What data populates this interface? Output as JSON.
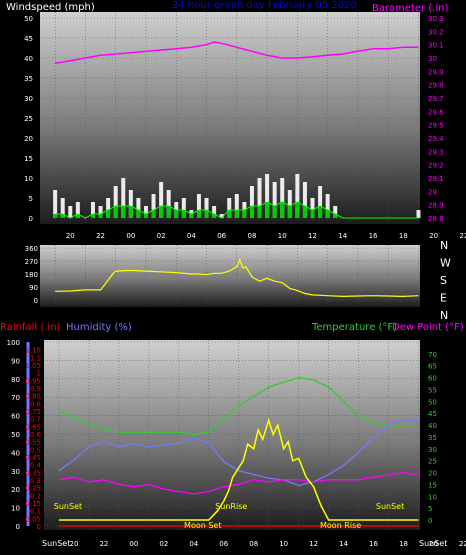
{
  "header": {
    "windspeed_label": "Windspeed (mph)",
    "center_title": "24 hour graph day   February 05 2020",
    "barometer_label": "Barometer (.in)"
  },
  "x_ticks": [
    "20",
    "22",
    "00",
    "02",
    "04",
    "06",
    "08",
    "10",
    "12",
    "14",
    "16",
    "18",
    "20",
    "22",
    "00"
  ],
  "direction_letters": [
    "N",
    "W",
    "S",
    "E",
    "N"
  ],
  "lower_labels": {
    "rainfall": "Rainfall (.in)",
    "humidity": "Humidity (%)",
    "temperature": "Temperature (°F)",
    "dewpoint": "Dew Point (°F)",
    "x_first": "SunSet",
    "x_last": "SunSet"
  },
  "annotations": [
    {
      "text": "SunSet",
      "x": 0.6
    },
    {
      "text": "SunRise",
      "x": 11.5
    },
    {
      "text": "SunSet",
      "x": 22.1
    },
    {
      "text": "Moon Set",
      "x": 9.6
    },
    {
      "text": "Moon Rise",
      "x": 18.8
    }
  ],
  "colors": {
    "windspeed_text": "#ffffff",
    "barometer": "#ff00ff",
    "title": "#0000ff",
    "gust": "#ffffff",
    "wind_avg": "#00cc00",
    "wind_line": "#00ff00",
    "direction": "#ffff00",
    "rain": "#ff0000",
    "humidity": "#7777ff",
    "temperature": "#33cc33",
    "dewpoint": "#ff00ff",
    "solar": "#ffff00",
    "annotation": "#ffff00"
  },
  "chart_data": [
    {
      "type": "line",
      "title": "Windspeed (mph) / Barometer (.in)",
      "xlabel": "",
      "ylabel": "Windspeed (mph)",
      "y2label": "Barometer (.in)",
      "xlim": [
        0,
        24
      ],
      "ylim": [
        0,
        50
      ],
      "y2lim": [
        28.8,
        30.3
      ],
      "y_ticks": [
        0,
        5,
        10,
        15,
        20,
        25,
        30,
        35,
        40,
        45,
        50
      ],
      "y2_ticks": [
        "28.8",
        "28.9",
        "29",
        "29.1",
        "29.2",
        "29.3",
        "29.4",
        "29.5",
        "29.6",
        "29.7",
        "29.8",
        "29.9",
        "30",
        "30.1",
        "30.2",
        "30.3"
      ],
      "grid": true,
      "series": [
        {
          "name": "Barometer",
          "axis": "y2",
          "x": [
            0,
            1,
            2,
            3,
            4,
            5,
            6,
            7,
            8,
            9,
            10,
            10.5,
            11,
            12,
            13,
            14,
            15,
            16,
            17,
            18,
            19,
            20,
            21,
            22,
            23,
            24
          ],
          "values": [
            29.96,
            29.98,
            30.0,
            30.02,
            30.03,
            30.04,
            30.05,
            30.06,
            30.07,
            30.08,
            30.1,
            30.12,
            30.11,
            30.08,
            30.05,
            30.02,
            30.0,
            30.0,
            30.01,
            30.02,
            30.03,
            30.05,
            30.07,
            30.07,
            30.08,
            30.08
          ]
        },
        {
          "name": "Gust",
          "axis": "y",
          "x": [
            0,
            0.5,
            1,
            1.5,
            2,
            2.5,
            3,
            3.5,
            4,
            4.5,
            5,
            5.5,
            6,
            6.5,
            7,
            7.5,
            8,
            8.5,
            9,
            9.5,
            10,
            10.5,
            11,
            11.5,
            12,
            12.5,
            13,
            13.5,
            14,
            14.5,
            15,
            15.5,
            16,
            16.5,
            17,
            17.5,
            18,
            18.5,
            19,
            20,
            21,
            22,
            23,
            24
          ],
          "values": [
            7,
            5,
            3,
            4,
            0,
            4,
            3,
            5,
            8,
            10,
            7,
            5,
            3,
            6,
            9,
            7,
            4,
            5,
            2,
            6,
            5,
            3,
            1,
            5,
            6,
            4,
            8,
            10,
            11,
            9,
            10,
            7,
            11,
            9,
            5,
            8,
            6,
            3,
            0,
            0,
            0,
            0,
            0,
            2
          ]
        },
        {
          "name": "Average",
          "axis": "y",
          "x": [
            0,
            0.5,
            1,
            1.5,
            2,
            2.5,
            3,
            3.5,
            4,
            4.5,
            5,
            5.5,
            6,
            6.5,
            7,
            7.5,
            8,
            8.5,
            9,
            9.5,
            10,
            10.5,
            11,
            11.5,
            12,
            12.5,
            13,
            13.5,
            14,
            14.5,
            15,
            15.5,
            16,
            16.5,
            17,
            17.5,
            18,
            18.5,
            19,
            24
          ],
          "values": [
            1,
            1,
            0,
            1,
            0,
            1,
            1,
            2,
            3,
            3,
            3,
            2,
            1,
            2,
            3,
            3,
            2,
            2,
            1,
            2,
            2,
            1,
            0,
            2,
            2,
            2,
            3,
            3,
            4,
            3,
            4,
            3,
            4,
            3,
            2,
            3,
            2,
            1,
            0,
            0
          ]
        }
      ]
    },
    {
      "type": "line",
      "title": "Wind Direction",
      "xlim": [
        0,
        24
      ],
      "ylim": [
        0,
        360
      ],
      "y_ticks": [
        0,
        90,
        180,
        270,
        360
      ],
      "series": [
        {
          "name": "Direction",
          "x": [
            0,
            1,
            2,
            3,
            3.3,
            3.8,
            4,
            5,
            6,
            7,
            8,
            9,
            9.5,
            10,
            10.5,
            11,
            11.5,
            12,
            12.2,
            12.4,
            12.6,
            13,
            13.5,
            14,
            14.5,
            15,
            15.5,
            16,
            16.5,
            17,
            18,
            19,
            20,
            21,
            22,
            23,
            24
          ],
          "values": [
            60,
            62,
            70,
            70,
            110,
            180,
            200,
            205,
            200,
            195,
            190,
            180,
            180,
            175,
            185,
            185,
            200,
            230,
            280,
            220,
            230,
            160,
            130,
            150,
            130,
            120,
            80,
            65,
            45,
            35,
            30,
            25,
            28,
            30,
            28,
            25,
            30
          ]
        }
      ]
    },
    {
      "type": "line",
      "title": "Rainfall / Humidity / Temperature / Dew Point / Solar",
      "xlim": [
        0,
        24
      ],
      "ylim_left": [
        0,
        100
      ],
      "ylim_rain": [
        0,
        1.2
      ],
      "ylim_temp": [
        0,
        75
      ],
      "y_ticks_humidity": [
        0,
        10,
        20,
        30,
        40,
        50,
        60,
        70,
        80,
        90,
        100
      ],
      "y_ticks_rain": [
        "0",
        "0.05",
        "0.1",
        "0.15",
        "0.2",
        "0.25",
        "0.3",
        "0.35",
        "0.4",
        "0.45",
        "0.5",
        "0.55",
        "0.6",
        "0.65",
        "0.7",
        "0.75",
        "0.8",
        "0.85",
        "0.9",
        "0.95",
        "1",
        "1.05",
        "1.1",
        "1.15"
      ],
      "y_ticks_temp": [
        0,
        5,
        10,
        15,
        20,
        25,
        30,
        35,
        40,
        45,
        50,
        55,
        60,
        65,
        70
      ],
      "series": [
        {
          "name": "Temperature",
          "axis": "temp",
          "x": [
            0,
            1,
            2,
            3,
            4,
            5,
            6,
            7,
            8,
            9,
            10,
            11,
            12,
            13,
            14,
            15,
            16,
            17,
            18,
            19,
            20,
            21,
            22,
            23,
            24
          ],
          "values": [
            46,
            43,
            40,
            38,
            37,
            37,
            37,
            37,
            37,
            36,
            37,
            43,
            48,
            52,
            56,
            58,
            60,
            59,
            56,
            50,
            44,
            41,
            40,
            39,
            39
          ]
        },
        {
          "name": "Humidity",
          "axis": "humidity",
          "x": [
            0,
            1,
            2,
            3,
            4,
            5,
            6,
            7,
            8,
            9,
            10,
            11,
            12,
            13,
            14,
            15,
            16,
            17,
            18,
            19,
            20,
            21,
            22,
            23,
            24
          ],
          "values": [
            30,
            36,
            43,
            46,
            43,
            45,
            43,
            44,
            45,
            48,
            45,
            35,
            30,
            28,
            26,
            25,
            22,
            24,
            28,
            33,
            40,
            48,
            55,
            58,
            57
          ]
        },
        {
          "name": "Dew Point",
          "axis": "temp",
          "x": [
            0,
            1,
            2,
            3,
            4,
            5,
            6,
            7,
            8,
            9,
            10,
            11,
            12,
            13,
            14,
            15,
            16,
            17,
            18,
            19,
            20,
            21,
            22,
            23,
            24
          ],
          "values": [
            17,
            18,
            16,
            17,
            15,
            14,
            15,
            13,
            12,
            11,
            12,
            14,
            15,
            17,
            16,
            17,
            17,
            16,
            17,
            17,
            17,
            18,
            19,
            20,
            19
          ]
        },
        {
          "name": "Solar",
          "axis": "temp",
          "x": [
            0,
            10,
            10.3,
            10.6,
            11,
            11.3,
            11.6,
            12,
            12.3,
            12.6,
            13,
            13.3,
            13.6,
            14,
            14.3,
            14.6,
            15,
            15.3,
            15.6,
            16,
            16.5,
            17,
            17.5,
            18,
            24
          ],
          "values": [
            0,
            0,
            2,
            4,
            8,
            12,
            18,
            22,
            25,
            32,
            30,
            38,
            34,
            42,
            36,
            40,
            30,
            33,
            25,
            26,
            18,
            14,
            6,
            0,
            0
          ]
        },
        {
          "name": "Rainfall",
          "axis": "rain",
          "x": [
            0,
            24
          ],
          "values": [
            0,
            0
          ]
        }
      ]
    }
  ]
}
